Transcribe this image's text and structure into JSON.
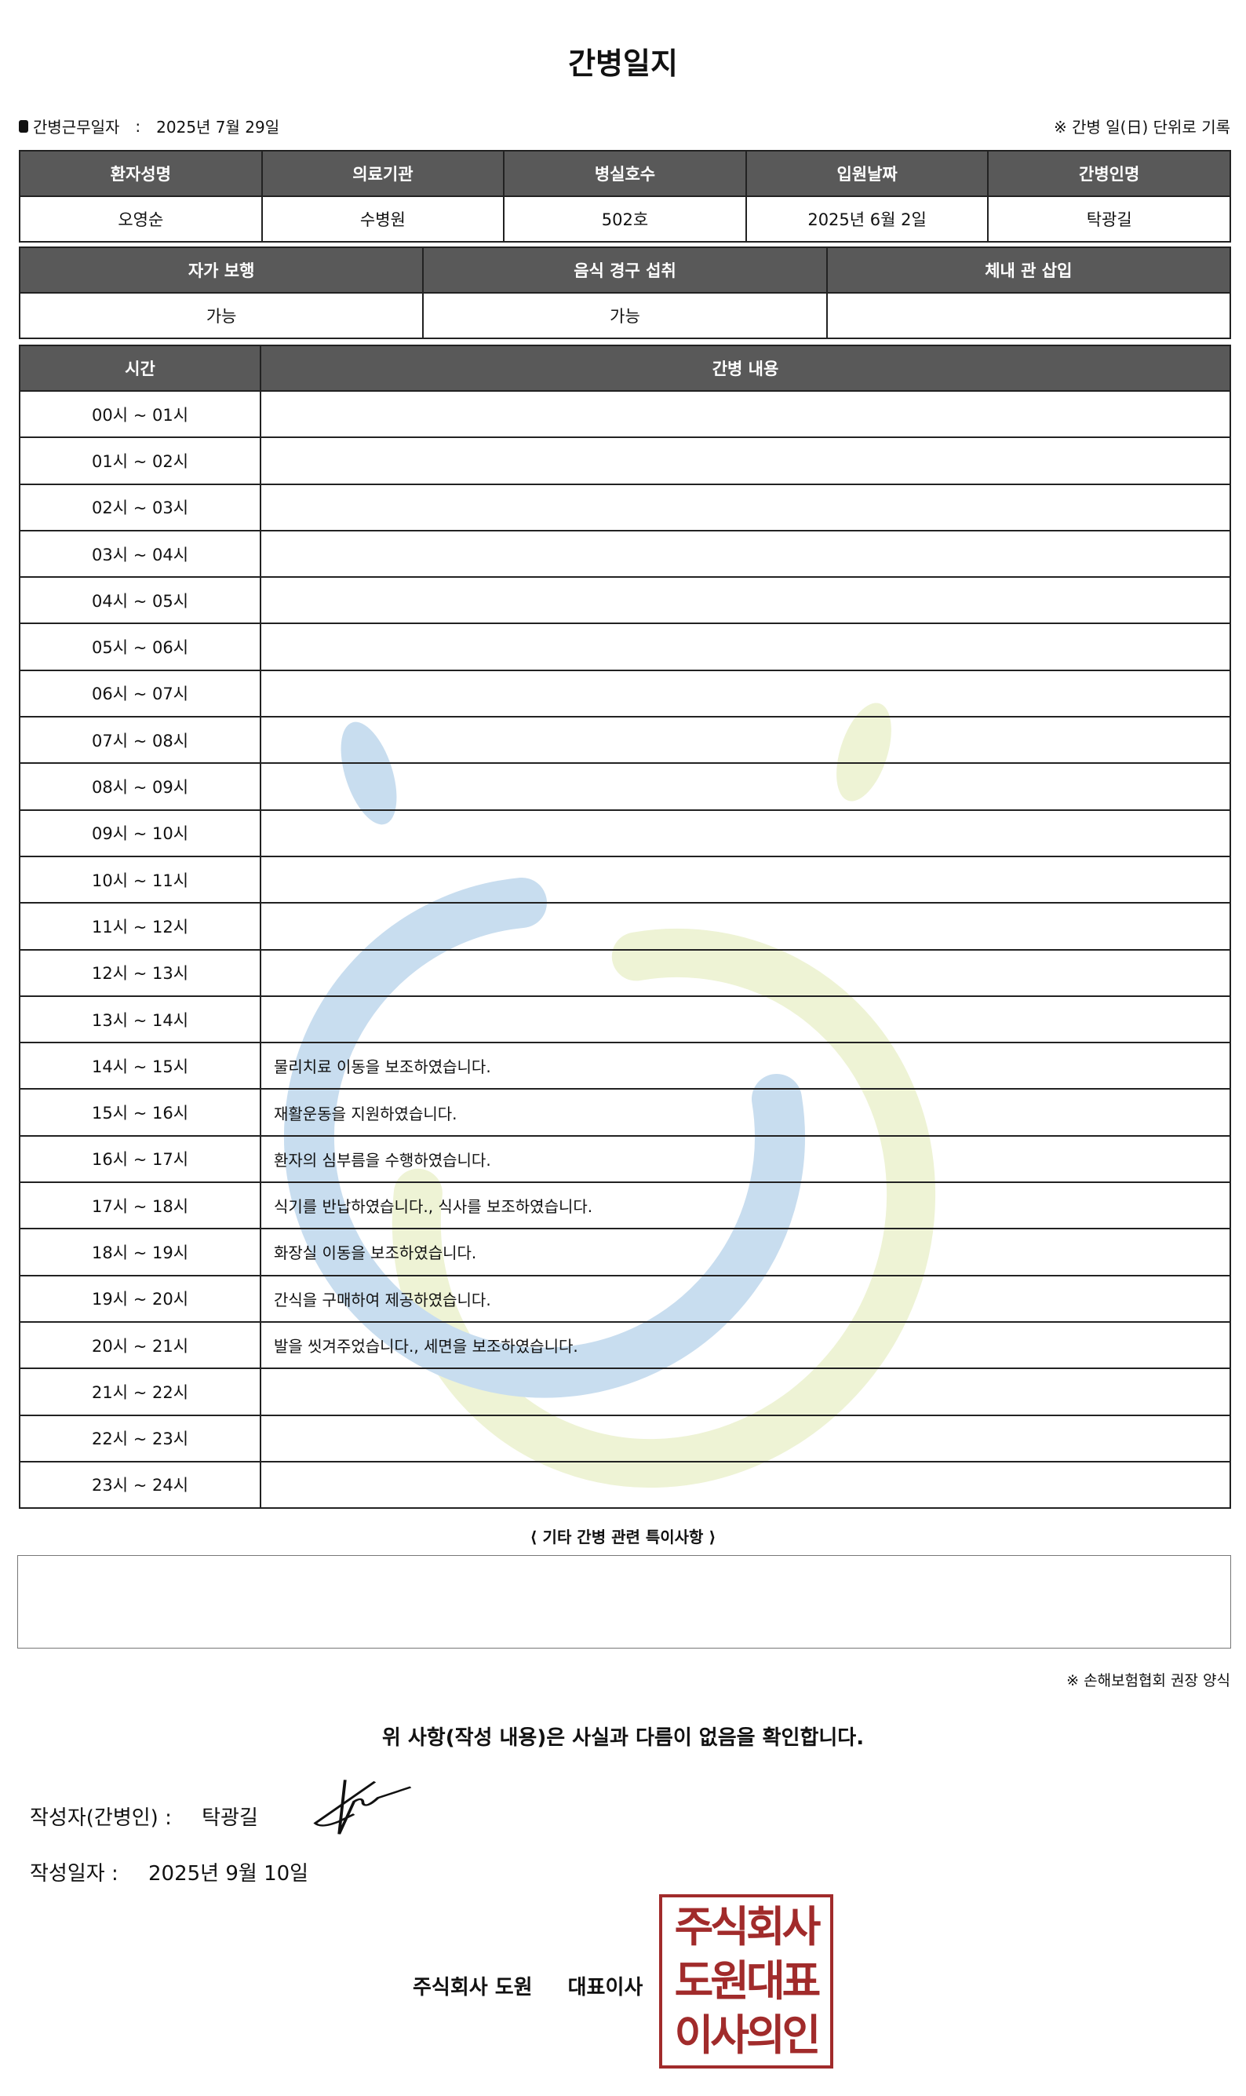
{
  "title": "간병일지",
  "meta": {
    "work_date_label": "간병근무일자",
    "work_date_sep": ":",
    "work_date": "2025년 7월 29일",
    "note": "※ 간병 일(日) 단위로 기록"
  },
  "info_table": {
    "headers": [
      "환자성명",
      "의료기관",
      "병실호수",
      "입원날짜",
      "간병인명"
    ],
    "values": [
      "오영순",
      "수병원",
      "502호",
      "2025년 6월 2일",
      "탁광길"
    ]
  },
  "status_table": {
    "headers": [
      "자가 보행",
      "음식 경구 섭취",
      "체내 관 삽입"
    ],
    "values": [
      "가능",
      "가능",
      ""
    ]
  },
  "log_table": {
    "headers": [
      "시간",
      "간병 내용"
    ],
    "rows": [
      {
        "time": "00시 ~ 01시",
        "content": ""
      },
      {
        "time": "01시 ~ 02시",
        "content": ""
      },
      {
        "time": "02시 ~ 03시",
        "content": ""
      },
      {
        "time": "03시 ~ 04시",
        "content": ""
      },
      {
        "time": "04시 ~ 05시",
        "content": ""
      },
      {
        "time": "05시 ~ 06시",
        "content": ""
      },
      {
        "time": "06시 ~ 07시",
        "content": ""
      },
      {
        "time": "07시 ~ 08시",
        "content": ""
      },
      {
        "time": "08시 ~ 09시",
        "content": ""
      },
      {
        "time": "09시 ~ 10시",
        "content": ""
      },
      {
        "time": "10시 ~ 11시",
        "content": ""
      },
      {
        "time": "11시 ~ 12시",
        "content": ""
      },
      {
        "time": "12시 ~ 13시",
        "content": ""
      },
      {
        "time": "13시 ~ 14시",
        "content": ""
      },
      {
        "time": "14시 ~ 15시",
        "content": "물리치료 이동을 보조하였습니다."
      },
      {
        "time": "15시 ~ 16시",
        "content": "재활운동을 지원하였습니다."
      },
      {
        "time": "16시 ~ 17시",
        "content": "환자의 심부름을 수행하였습니다."
      },
      {
        "time": "17시 ~ 18시",
        "content": "식기를 반납하였습니다., 식사를 보조하였습니다."
      },
      {
        "time": "18시 ~ 19시",
        "content": "화장실 이동을 보조하였습니다."
      },
      {
        "time": "19시 ~ 20시",
        "content": "간식을 구매하여 제공하였습니다."
      },
      {
        "time": "20시 ~ 21시",
        "content": "발을 씻겨주었습니다., 세면을 보조하였습니다."
      },
      {
        "time": "21시 ~ 22시",
        "content": ""
      },
      {
        "time": "22시 ~ 23시",
        "content": ""
      },
      {
        "time": "23시 ~ 24시",
        "content": ""
      }
    ]
  },
  "etc": {
    "title": "⟨ 기타 간병 관련 특이사항 ⟩",
    "content": ""
  },
  "form_note": "※ 손해보험협회 권장 양식",
  "confirm_text": "위 사항(작성 내용)은 사실과 다름이 없음을 확인합니다.",
  "writer": {
    "label": "작성자(간병인) :",
    "name": "탁광길"
  },
  "written_date": {
    "label": "작성일자 :",
    "value": "2025년 9월 10일"
  },
  "company": {
    "name": "주식회사 도원",
    "ceo_title": "대표이사"
  },
  "seal": {
    "lines": [
      "주식회사",
      "도원대표",
      "이사의인"
    ],
    "color": "#a12b2b"
  },
  "colors": {
    "header_bg": "#595959",
    "watermark_blue": "#c8ddef",
    "watermark_green": "#eef3d5"
  }
}
